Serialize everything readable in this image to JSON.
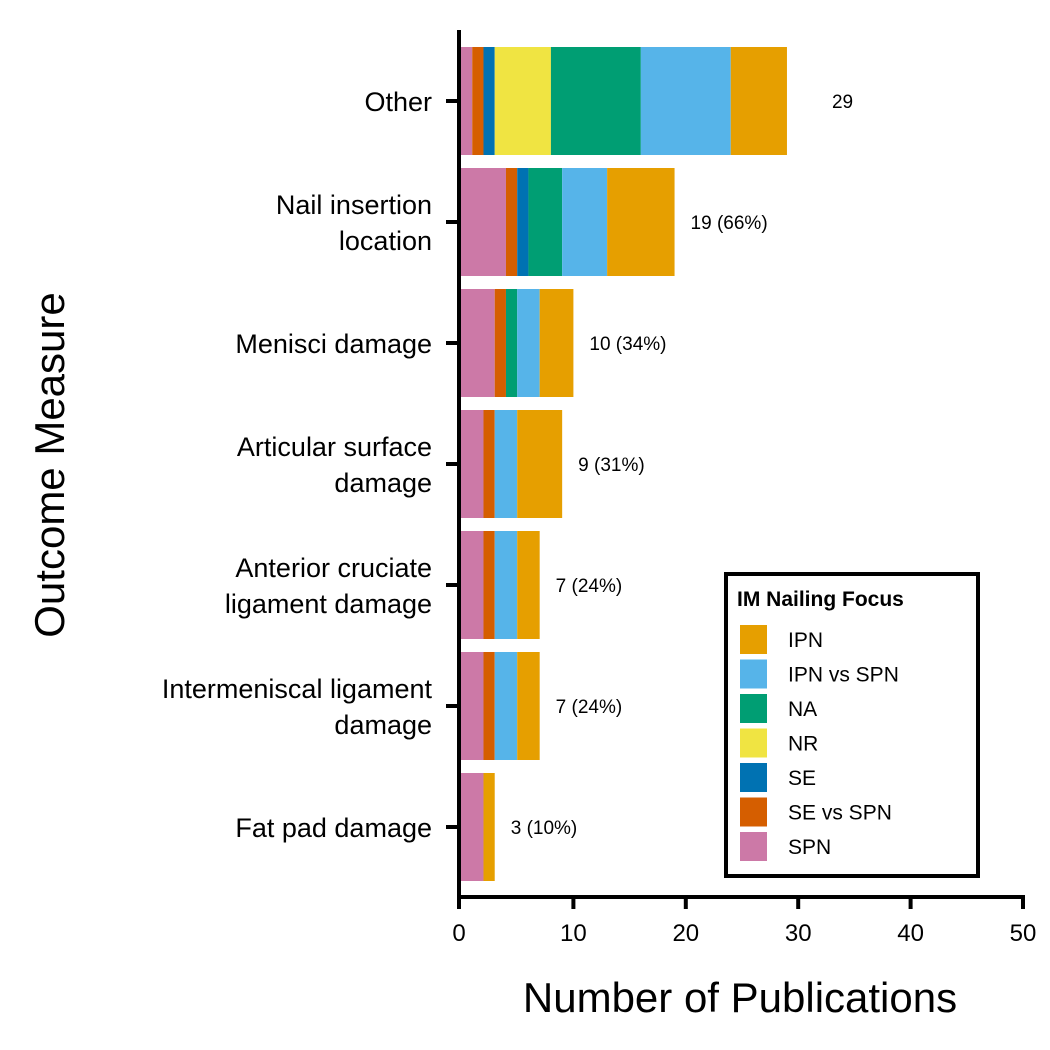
{
  "chart_data": {
    "type": "bar",
    "orientation": "horizontal",
    "stacked": true,
    "categories": [
      "Other",
      "Nail insertion\nlocation",
      "Menisci damage",
      "Articular surface\ndamage",
      "Anterior cruciate\nligament damage",
      "Intermeniscal ligament\ndamage",
      "Fat pad damage"
    ],
    "series": [
      {
        "name": "SPN",
        "color": "#CC79A7",
        "values": [
          1,
          4,
          3,
          2,
          2,
          2,
          2
        ]
      },
      {
        "name": "SE vs SPN",
        "color": "#D55E00",
        "values": [
          1,
          1,
          1,
          1,
          1,
          1,
          0
        ]
      },
      {
        "name": "SE",
        "color": "#0072B2",
        "values": [
          1,
          1,
          0,
          0,
          0,
          0,
          0
        ]
      },
      {
        "name": "NR",
        "color": "#F0E442",
        "values": [
          5,
          0,
          0,
          0,
          0,
          0,
          0
        ]
      },
      {
        "name": "NA",
        "color": "#009E73",
        "values": [
          8,
          3,
          1,
          0,
          0,
          0,
          0
        ]
      },
      {
        "name": "IPN vs SPN",
        "color": "#56B4E9",
        "values": [
          8,
          4,
          2,
          2,
          2,
          2,
          0
        ]
      },
      {
        "name": "IPN",
        "color": "#E69F00",
        "values": [
          5,
          6,
          3,
          4,
          2,
          2,
          1
        ]
      }
    ],
    "totals": [
      29,
      19,
      10,
      9,
      7,
      7,
      3
    ],
    "bar_labels": [
      "29",
      "19 (66%)",
      "10 (34%)",
      "9 (31%)",
      "7 (24%)",
      "7 (24%)",
      "3 (10%)"
    ],
    "xlabel": "Number of Publications",
    "ylabel": "Outcome Measure",
    "xlim": [
      0,
      50
    ],
    "xticks": [
      0,
      10,
      20,
      30,
      40,
      50
    ],
    "grid": false,
    "legend": {
      "title": "IM Nailing Focus",
      "placement": "bottom-right",
      "order": [
        "IPN",
        "IPN vs SPN",
        "NA",
        "NR",
        "SE",
        "SE vs SPN",
        "SPN"
      ]
    }
  }
}
